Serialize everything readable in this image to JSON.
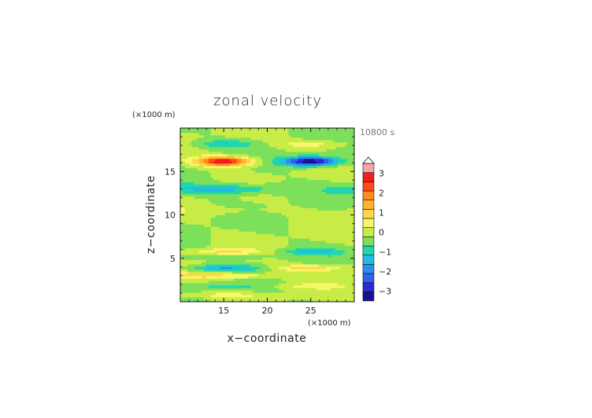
{
  "chart_data": {
    "type": "heatmap",
    "title": "zonal velocity",
    "xlabel": "x−coordinate",
    "ylabel": "z−coordinate",
    "x_unit": "(×1000 m)",
    "y_unit": "(×1000 m)",
    "time_label": "10800 s",
    "xlim": [
      10,
      30
    ],
    "ylim": [
      0,
      20
    ],
    "x_ticks": [
      15,
      20,
      25
    ],
    "y_ticks": [
      5,
      10,
      15
    ],
    "x_tick_labels": [
      "15",
      "20",
      "25"
    ],
    "y_tick_labels": [
      "5",
      "10",
      "15"
    ],
    "colorbar": {
      "levels": [
        -3.5,
        -3,
        -2.5,
        -2,
        -1.5,
        -1,
        -0.5,
        0,
        0.5,
        1,
        1.5,
        2,
        2.5,
        3,
        3.5
      ],
      "colors": [
        "#1a0f8c",
        "#2a2ad4",
        "#2f63e8",
        "#2b8ff0",
        "#22bde0",
        "#20d6b0",
        "#7de05a",
        "#c8ec46",
        "#f7f76a",
        "#ffd84a",
        "#ffb42d",
        "#ff8a1e",
        "#ff4a12",
        "#f01e1e",
        "#f7a5a5"
      ],
      "tick_values": [
        -3,
        -2,
        -1,
        0,
        1,
        2,
        3
      ],
      "tick_labels": [
        "−3",
        "−2",
        "−1",
        "0",
        "1",
        "2",
        "3"
      ],
      "extend": "max"
    },
    "bands": [
      {
        "z": 16.2,
        "sigma": 0.55,
        "amp": 3.6
      },
      {
        "z": 13.0,
        "sigma": 0.6,
        "amp": -1.4
      },
      {
        "z": 18.2,
        "sigma": 0.45,
        "amp": -0.9
      },
      {
        "z": 10.5,
        "sigma": 0.5,
        "amp": 0.35
      },
      {
        "z": 5.8,
        "sigma": 0.35,
        "amp": 1.0
      },
      {
        "z": 5.2,
        "sigma": 0.3,
        "amp": -0.4
      },
      {
        "z": 3.9,
        "sigma": 0.35,
        "amp": -1.4
      },
      {
        "z": 3.0,
        "sigma": 0.35,
        "amp": 1.3
      },
      {
        "z": 1.8,
        "sigma": 0.3,
        "amp": -0.6
      },
      {
        "z": 0.8,
        "sigma": 0.3,
        "amp": 0.6
      }
    ],
    "x_pattern_centers": [
      15,
      25
    ],
    "x_pattern_sign": [
      1,
      -1
    ]
  }
}
